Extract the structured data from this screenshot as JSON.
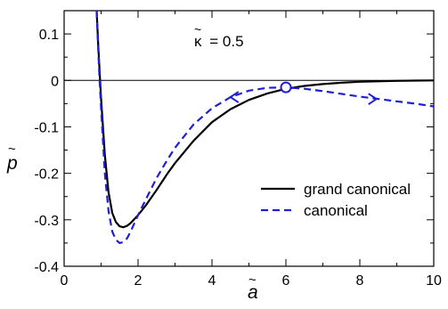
{
  "chart_data": {
    "type": "line",
    "annotation": "κ̃ = 0.5",
    "annotation_symbol": "κ",
    "annotation_value": "= 0.5",
    "xlabel_letter": "a",
    "ylabel_letter": "p",
    "xlim": [
      0,
      10
    ],
    "ylim": [
      -0.4,
      0.15
    ],
    "xticks": [
      {
        "value": 0,
        "label": "0"
      },
      {
        "value": 2,
        "label": "2"
      },
      {
        "value": 4,
        "label": "4"
      },
      {
        "value": 6,
        "label": "6"
      },
      {
        "value": 8,
        "label": "8"
      },
      {
        "value": 10,
        "label": "10"
      }
    ],
    "yticks": [
      {
        "value": 0.1,
        "label": "0.1"
      },
      {
        "value": 0,
        "label": "0"
      },
      {
        "value": -0.1,
        "label": "-0.1"
      },
      {
        "value": -0.2,
        "label": "-0.2"
      },
      {
        "value": -0.3,
        "label": "-0.3"
      },
      {
        "value": -0.4,
        "label": "-0.4"
      }
    ],
    "grid": false,
    "legend_position": "center-right",
    "zero_line": true,
    "series": [
      {
        "name": "grand canonical",
        "color": "#000000",
        "dash": "solid",
        "x": [
          0.88,
          0.92,
          0.96,
          1.0,
          1.05,
          1.1,
          1.2,
          1.3,
          1.4,
          1.5,
          1.6,
          1.7,
          1.8,
          2.0,
          2.2,
          2.5,
          2.8,
          3.0,
          3.5,
          4.0,
          4.5,
          5.0,
          5.5,
          6.0,
          6.5,
          7.0,
          7.5,
          8.0,
          8.5,
          9.0,
          9.5,
          10.0
        ],
        "y": [
          0.15,
          0.08,
          0.02,
          -0.04,
          -0.1,
          -0.16,
          -0.24,
          -0.285,
          -0.305,
          -0.314,
          -0.316,
          -0.313,
          -0.307,
          -0.29,
          -0.27,
          -0.236,
          -0.2,
          -0.178,
          -0.13,
          -0.09,
          -0.062,
          -0.042,
          -0.028,
          -0.018,
          -0.012,
          -0.008,
          -0.005,
          -0.003,
          -0.002,
          -0.001,
          -0.0005,
          0.0
        ]
      },
      {
        "name": "canonical",
        "color": "#1f1fd6",
        "dash": "dashed",
        "x": [
          0.88,
          0.92,
          0.96,
          1.0,
          1.05,
          1.1,
          1.2,
          1.3,
          1.4,
          1.5,
          1.6,
          1.7,
          1.8,
          2.0,
          2.2,
          2.5,
          2.8,
          3.0,
          3.5,
          4.0,
          4.5,
          5.0,
          5.5,
          6.0,
          6.5,
          7.0,
          7.5,
          8.0,
          8.5,
          9.0,
          9.5,
          10.0
        ],
        "y": [
          0.15,
          0.07,
          0.0,
          -0.06,
          -0.13,
          -0.2,
          -0.28,
          -0.325,
          -0.343,
          -0.35,
          -0.348,
          -0.34,
          -0.325,
          -0.29,
          -0.258,
          -0.21,
          -0.17,
          -0.145,
          -0.095,
          -0.06,
          -0.036,
          -0.022,
          -0.016,
          -0.015,
          -0.018,
          -0.023,
          -0.029,
          -0.035,
          -0.04,
          -0.045,
          -0.05,
          -0.056
        ]
      }
    ],
    "marker": {
      "x": 6.0,
      "y": -0.015,
      "shape": "open-circle"
    },
    "arrows": [
      {
        "series": "canonical",
        "x": 4.5,
        "y": -0.036,
        "direction": "left"
      },
      {
        "series": "canonical",
        "x": 8.45,
        "y": -0.04,
        "direction": "right"
      }
    ]
  }
}
